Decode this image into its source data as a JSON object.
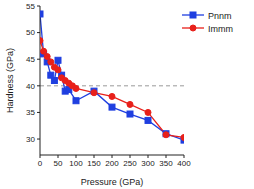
{
  "chart_data": {
    "type": "line",
    "x_label": "Pressure (GPa)",
    "y_label": "Hardness (GPa)",
    "xlim": [
      0,
      400
    ],
    "xticks": [
      0,
      50,
      100,
      150,
      200,
      250,
      300,
      350,
      400
    ],
    "ylim": [
      27,
      55
    ],
    "yticks": [
      30,
      35,
      40,
      45,
      50,
      55
    ],
    "grid": false,
    "legend": "upper right",
    "series": [
      {
        "name": "Pnnm",
        "color": "#1f3fe0",
        "marker": "square",
        "line_style": "solid",
        "x": [
          0,
          10,
          20,
          30,
          40,
          50,
          60,
          70,
          80,
          100,
          150,
          200,
          250,
          300,
          350,
          400
        ],
        "values": [
          53.5,
          46,
          44.5,
          42,
          41,
          44.8,
          42,
          39,
          39.3,
          37.2,
          39,
          36,
          34.7,
          33.5,
          31,
          29.8
        ]
      },
      {
        "name": "Immm",
        "color": "#e8201a",
        "marker": "circle",
        "line_style": "solid",
        "x": [
          0,
          10,
          20,
          30,
          40,
          50,
          60,
          70,
          80,
          90,
          100,
          150,
          200,
          250,
          300,
          350,
          400
        ],
        "values": [
          48.5,
          46.5,
          45.5,
          44.5,
          43.5,
          43,
          41.5,
          41,
          40.5,
          40,
          39.5,
          38.7,
          38,
          36.5,
          35,
          30.8,
          30.3
        ]
      }
    ],
    "reference_lines": [
      {
        "y": 40,
        "color": "#999999",
        "line_style": "dashed"
      }
    ]
  }
}
